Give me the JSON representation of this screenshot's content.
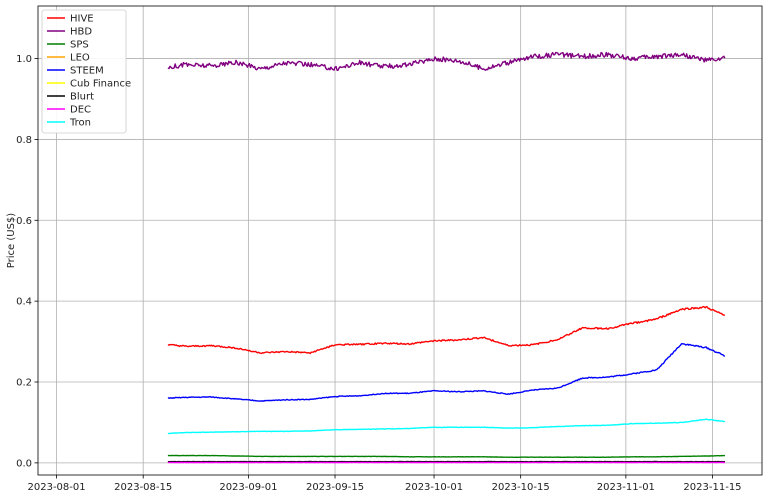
{
  "chart_data": {
    "type": "line",
    "title": "",
    "xlabel": "",
    "ylabel": "Price (US$)",
    "xlim": [
      "2023-07-29",
      "2023-11-23"
    ],
    "ylim": [
      -0.03,
      1.13
    ],
    "grid": true,
    "legend_placement": "top-left",
    "x_ticks": [
      "2023-08-01",
      "2023-08-15",
      "2023-09-01",
      "2023-09-15",
      "2023-10-01",
      "2023-10-15",
      "2023-11-01",
      "2023-11-15"
    ],
    "y_ticks": [
      0.0,
      0.2,
      0.4,
      0.6,
      0.8,
      1.0
    ],
    "x": [
      "2023-08-19",
      "2023-08-22",
      "2023-08-26",
      "2023-08-30",
      "2023-09-03",
      "2023-09-07",
      "2023-09-11",
      "2023-09-15",
      "2023-09-19",
      "2023-09-23",
      "2023-09-27",
      "2023-10-01",
      "2023-10-05",
      "2023-10-09",
      "2023-10-13",
      "2023-10-17",
      "2023-10-21",
      "2023-10-25",
      "2023-10-29",
      "2023-11-02",
      "2023-11-06",
      "2023-11-10",
      "2023-11-14",
      "2023-11-17"
    ],
    "series": [
      {
        "name": "HIVE",
        "color": "#ff0000",
        "values": [
          0.292,
          0.288,
          0.29,
          0.284,
          0.272,
          0.275,
          0.272,
          0.292,
          0.293,
          0.296,
          0.294,
          0.302,
          0.304,
          0.31,
          0.29,
          0.292,
          0.305,
          0.334,
          0.332,
          0.345,
          0.356,
          0.38,
          0.385,
          0.364
        ]
      },
      {
        "name": "HBD",
        "color": "#800080",
        "values": [
          0.98,
          0.985,
          0.982,
          0.99,
          0.975,
          0.99,
          0.985,
          0.975,
          0.99,
          0.98,
          0.985,
          1.0,
          0.995,
          0.975,
          0.99,
          1.005,
          1.01,
          1.005,
          1.01,
          1.0,
          1.005,
          1.01,
          0.995,
          1.0
        ]
      },
      {
        "name": "SPS",
        "color": "#008000",
        "values": [
          0.018,
          0.018,
          0.018,
          0.017,
          0.016,
          0.016,
          0.016,
          0.016,
          0.016,
          0.016,
          0.015,
          0.015,
          0.015,
          0.015,
          0.014,
          0.014,
          0.014,
          0.014,
          0.014,
          0.015,
          0.015,
          0.016,
          0.017,
          0.018
        ]
      },
      {
        "name": "LEO",
        "color": "#ffa500",
        "values": [
          0.002,
          0.002,
          0.002,
          0.002,
          0.002,
          0.002,
          0.002,
          0.002,
          0.002,
          0.002,
          0.002,
          0.002,
          0.002,
          0.002,
          0.002,
          0.002,
          0.002,
          0.002,
          0.002,
          0.002,
          0.002,
          0.002,
          0.002,
          0.002
        ]
      },
      {
        "name": "STEEM",
        "color": "#0000ff",
        "values": [
          0.16,
          0.162,
          0.163,
          0.158,
          0.153,
          0.156,
          0.157,
          0.164,
          0.166,
          0.172,
          0.172,
          0.178,
          0.176,
          0.178,
          0.17,
          0.18,
          0.185,
          0.21,
          0.212,
          0.22,
          0.23,
          0.295,
          0.285,
          0.265
        ]
      },
      {
        "name": "Cub Finance",
        "color": "#ffff00",
        "values": [
          0.002,
          0.002,
          0.002,
          0.002,
          0.002,
          0.002,
          0.002,
          0.002,
          0.002,
          0.002,
          0.002,
          0.002,
          0.002,
          0.002,
          0.002,
          0.002,
          0.002,
          0.002,
          0.002,
          0.002,
          0.002,
          0.002,
          0.002,
          0.002
        ]
      },
      {
        "name": "Blurt",
        "color": "#000000",
        "values": [
          0.003,
          0.003,
          0.003,
          0.003,
          0.003,
          0.003,
          0.003,
          0.003,
          0.003,
          0.003,
          0.003,
          0.003,
          0.003,
          0.003,
          0.003,
          0.003,
          0.003,
          0.003,
          0.003,
          0.003,
          0.003,
          0.003,
          0.003,
          0.003
        ]
      },
      {
        "name": "DEC",
        "color": "#ff00ff",
        "values": [
          0.001,
          0.001,
          0.001,
          0.001,
          0.001,
          0.001,
          0.001,
          0.001,
          0.001,
          0.001,
          0.001,
          0.001,
          0.001,
          0.001,
          0.001,
          0.001,
          0.001,
          0.001,
          0.001,
          0.001,
          0.001,
          0.001,
          0.001,
          0.001
        ]
      },
      {
        "name": "Tron",
        "color": "#00ffff",
        "values": [
          0.073,
          0.075,
          0.076,
          0.077,
          0.078,
          0.078,
          0.079,
          0.082,
          0.083,
          0.084,
          0.085,
          0.088,
          0.088,
          0.088,
          0.086,
          0.087,
          0.09,
          0.092,
          0.093,
          0.097,
          0.098,
          0.1,
          0.108,
          0.102
        ]
      }
    ]
  }
}
